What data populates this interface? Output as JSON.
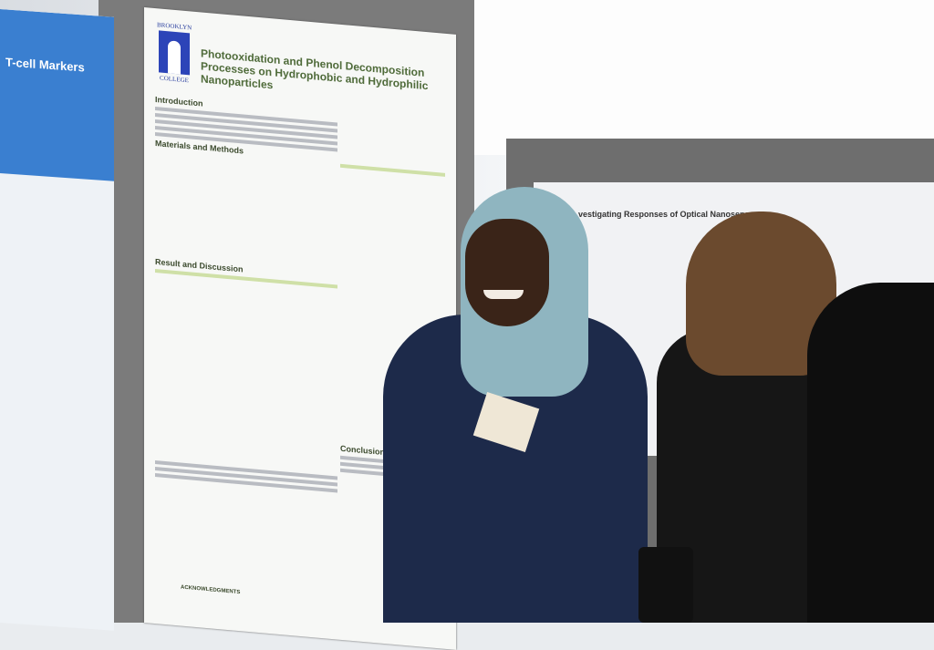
{
  "main_poster": {
    "logo_top": "BROOKLYN",
    "logo_bottom": "COLLEGE",
    "title": "Photooxidation and Phenol Decomposition Processes on Hydrophobic and Hydrophilic Nanoparticles",
    "sections": [
      "Introduction",
      "Materials and Methods",
      "Result and Discussion",
      "Conclusion"
    ],
    "footer": "ACKNOWLEDGMENTS"
  },
  "left_poster": {
    "title": "T-cell Markers"
  },
  "right_poster": {
    "title": "…vestigating Responses of Optical Nanosensors"
  }
}
